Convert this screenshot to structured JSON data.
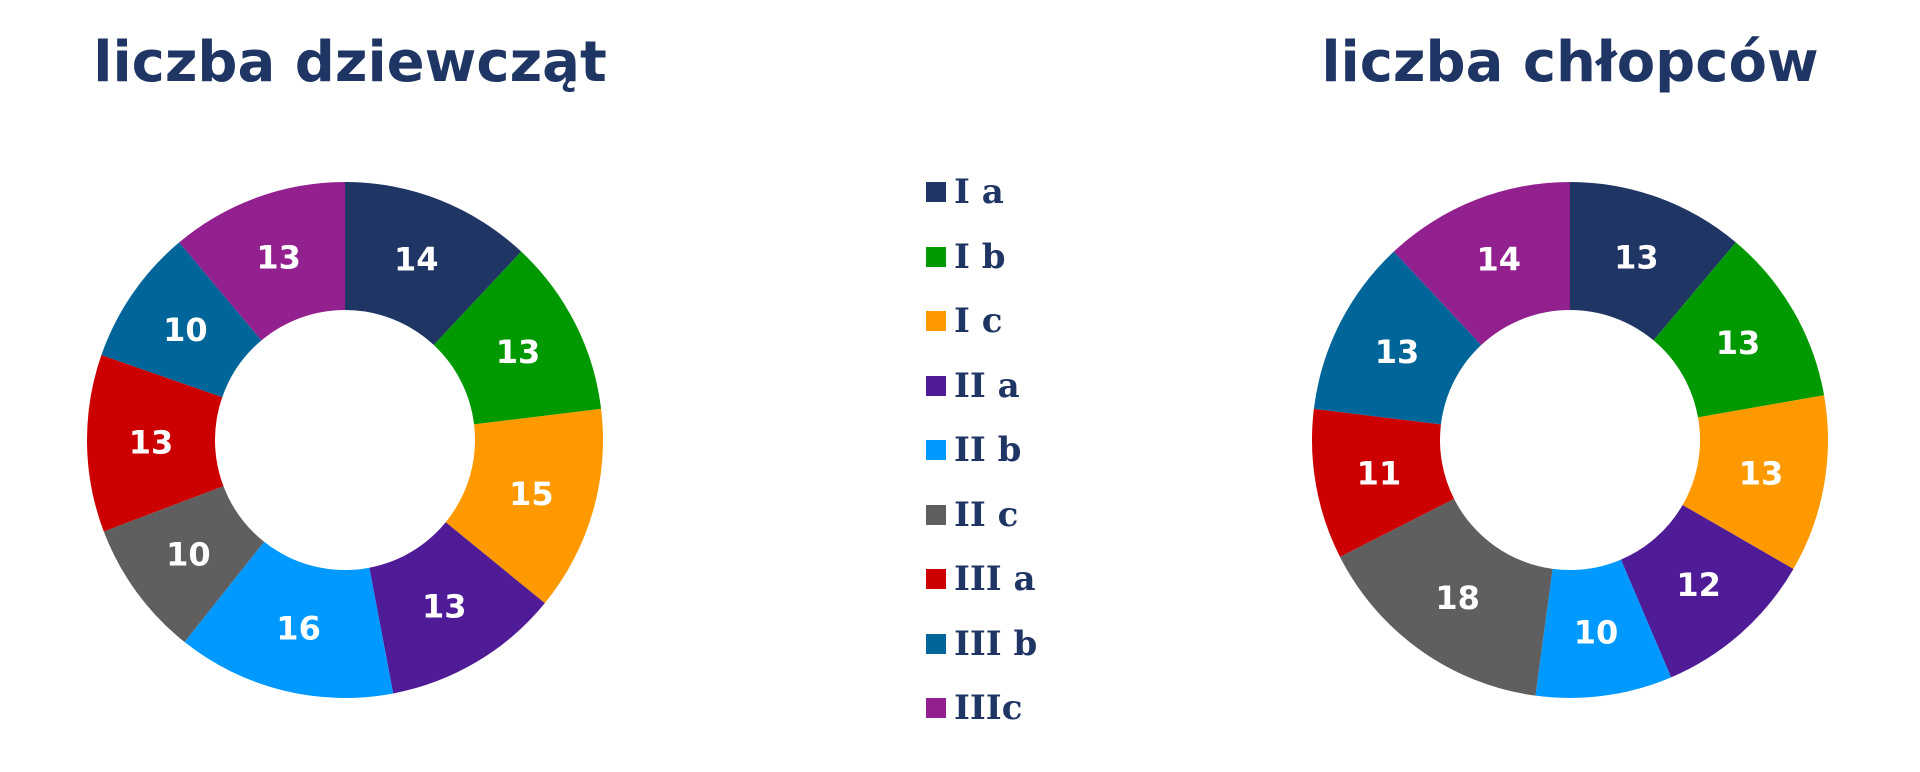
{
  "colors": {
    "text": "#1f3564",
    "slice_label": "#ffffff"
  },
  "legend": {
    "placement": "center",
    "entries": [
      {
        "label": "I a",
        "color": "#1f3564"
      },
      {
        "label": "I b",
        "color": "#009900"
      },
      {
        "label": "I c",
        "color": "#ff9900"
      },
      {
        "label": "II a",
        "color": "#4f1b97"
      },
      {
        "label": "II b",
        "color": "#0099ff"
      },
      {
        "label": "II c",
        "color": "#5f5f5f"
      },
      {
        "label": "III a",
        "color": "#cc0000"
      },
      {
        "label": "III b",
        "color": "#006699"
      },
      {
        "label": "IIIc",
        "color": "#92208f"
      }
    ]
  },
  "chart_data": [
    {
      "type": "pie",
      "title": "liczba dziewcząt",
      "categories": [
        "I a",
        "I b",
        "I c",
        "II a",
        "II b",
        "II c",
        "III a",
        "III b",
        "IIIc"
      ],
      "values": [
        14,
        13,
        15,
        13,
        16,
        10,
        13,
        10,
        13
      ],
      "data_labels": [
        "14",
        "13",
        "15",
        "13",
        "16",
        "10",
        "13",
        "10",
        "13"
      ]
    },
    {
      "type": "pie",
      "title": "liczba chłopców",
      "categories": [
        "I a",
        "I b",
        "I c",
        "II a",
        "II b",
        "II c",
        "III a",
        "III b",
        "IIIc"
      ],
      "values": [
        13,
        13,
        13,
        12,
        10,
        18,
        11,
        13,
        14
      ],
      "data_labels": [
        "13",
        "13",
        "13",
        "12",
        "10",
        "18",
        "11",
        "13",
        "14"
      ]
    }
  ]
}
